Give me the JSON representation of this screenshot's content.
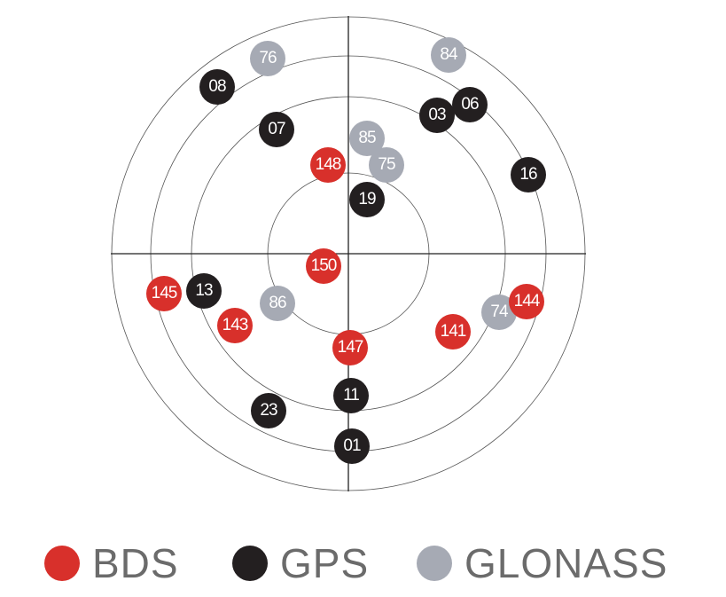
{
  "systems": {
    "bds": {
      "label": "BDS",
      "color": "#d8302b"
    },
    "gps": {
      "label": "GPS",
      "color": "#231f20"
    },
    "glonass": {
      "label": "GLONASS",
      "color": "#a6aab4"
    }
  },
  "satellites": [
    {
      "id": "76",
      "system": "glonass"
    },
    {
      "id": "84",
      "system": "glonass"
    },
    {
      "id": "08",
      "system": "gps"
    },
    {
      "id": "07",
      "system": "gps"
    },
    {
      "id": "03",
      "system": "gps"
    },
    {
      "id": "06",
      "system": "gps"
    },
    {
      "id": "85",
      "system": "glonass"
    },
    {
      "id": "75",
      "system": "glonass"
    },
    {
      "id": "148",
      "system": "bds"
    },
    {
      "id": "16",
      "system": "gps"
    },
    {
      "id": "19",
      "system": "gps"
    },
    {
      "id": "150",
      "system": "bds"
    },
    {
      "id": "145",
      "system": "bds"
    },
    {
      "id": "13",
      "system": "gps"
    },
    {
      "id": "86",
      "system": "glonass"
    },
    {
      "id": "143",
      "system": "bds"
    },
    {
      "id": "147",
      "system": "bds"
    },
    {
      "id": "141",
      "system": "bds"
    },
    {
      "id": "74",
      "system": "glonass"
    },
    {
      "id": "144",
      "system": "bds"
    },
    {
      "id": "11",
      "system": "gps"
    },
    {
      "id": "23",
      "system": "gps"
    },
    {
      "id": "01",
      "system": "gps"
    }
  ]
}
